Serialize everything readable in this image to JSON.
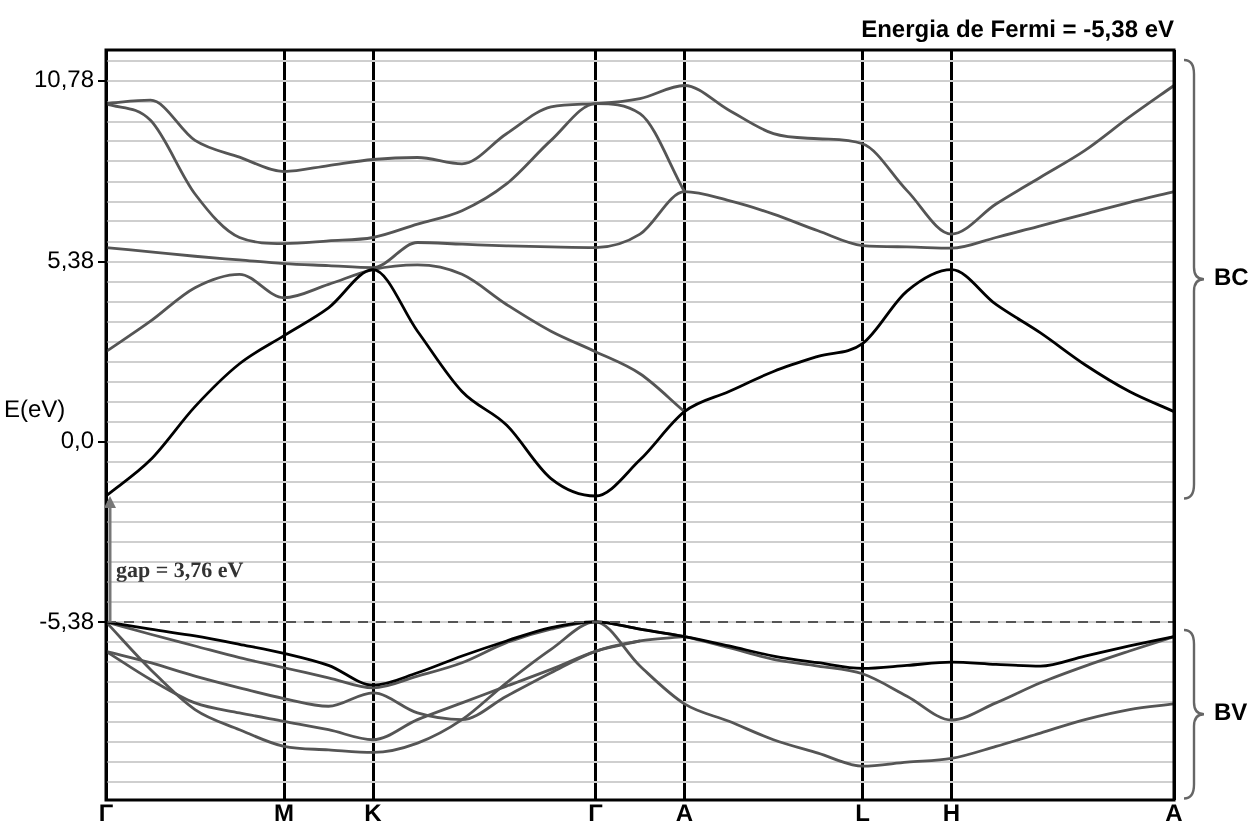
{
  "chart_data": {
    "type": "line",
    "title": "Energia de Fermi = -5,38 eV",
    "ylabel": "E(eV)",
    "categories": [
      "Γ",
      null,
      null,
      null,
      "M",
      null,
      "K",
      null,
      null,
      null,
      null,
      "Γ",
      null,
      "A",
      null,
      null,
      null,
      "L",
      null,
      "H",
      null,
      null,
      null,
      null,
      "A"
    ],
    "ylim": [
      -10.7,
      11.7
    ],
    "yticks": [
      {
        "value": -10.16,
        "label": null
      },
      {
        "value": -9.56,
        "label": null
      },
      {
        "value": -8.97,
        "label": null
      },
      {
        "value": -8.37,
        "label": null
      },
      {
        "value": -7.77,
        "label": null
      },
      {
        "value": -7.17,
        "label": null
      },
      {
        "value": -6.58,
        "label": null
      },
      {
        "value": -5.98,
        "label": null
      },
      {
        "value": -5.38,
        "label": "-5,38"
      },
      {
        "value": -4.78,
        "label": null
      },
      {
        "value": -4.18,
        "label": null
      },
      {
        "value": -3.59,
        "label": null
      },
      {
        "value": -2.99,
        "label": null
      },
      {
        "value": -2.39,
        "label": null
      },
      {
        "value": -1.79,
        "label": null
      },
      {
        "value": -1.2,
        "label": null
      },
      {
        "value": -0.6,
        "label": null
      },
      {
        "value": 0,
        "label": "0,0"
      },
      {
        "value": 0.6,
        "label": null
      },
      {
        "value": 1.2,
        "label": null
      },
      {
        "value": 1.79,
        "label": null
      },
      {
        "value": 2.39,
        "label": null
      },
      {
        "value": 2.99,
        "label": null
      },
      {
        "value": 3.59,
        "label": null
      },
      {
        "value": 4.18,
        "label": null
      },
      {
        "value": 4.78,
        "label": null
      },
      {
        "value": 5.38,
        "label": "5,38"
      },
      {
        "value": 5.98,
        "label": null
      },
      {
        "value": 6.58,
        "label": null
      },
      {
        "value": 7.17,
        "label": null
      },
      {
        "value": 7.77,
        "label": null
      },
      {
        "value": 8.37,
        "label": null
      },
      {
        "value": 8.97,
        "label": null
      },
      {
        "value": 9.56,
        "label": null
      },
      {
        "value": 10.16,
        "label": null
      },
      {
        "value": 10.78,
        "label": "10,78"
      },
      {
        "value": 11.36,
        "label": null
      }
    ],
    "grid": true,
    "legend": false,
    "marker": "none",
    "line_style": "solid",
    "ref_lines": [
      {
        "axis": "y",
        "value": -5.38,
        "line_style": "dashed",
        "color": "#555555"
      }
    ],
    "annotations": [
      "gap = 3,76 eV",
      "BC",
      "BV"
    ],
    "series": [
      {
        "color": "#000000",
        "values": [
          -1.62,
          -0.54,
          1.05,
          2.33,
          3.17,
          4.0,
          5.14,
          3.3,
          1.5,
          0.5,
          -1.1,
          -1.62,
          -0.54,
          0.9,
          1.5,
          2.1,
          2.55,
          2.93,
          4.5,
          5.14,
          4.1,
          3.25,
          2.3,
          1.5,
          0.9
        ]
      },
      {
        "color": "#555555",
        "values": [
          2.69,
          3.6,
          4.6,
          5.0,
          4.3,
          4.7,
          5.14,
          5.28,
          5.0,
          4.1,
          3.3,
          2.69,
          2.03,
          0.9,
          null,
          null,
          null,
          null,
          null,
          null,
          null,
          null,
          null,
          null,
          null
        ]
      },
      {
        "color": "#555555",
        "values": [
          5.8,
          5.67,
          5.54,
          5.43,
          5.32,
          5.26,
          5.2,
          5.95,
          5.9,
          5.85,
          5.82,
          5.8,
          6.2,
          7.47,
          7.2,
          6.8,
          6.3,
          5.86,
          5.82,
          5.78,
          6.1,
          6.45,
          6.8,
          7.15,
          7.47
        ]
      },
      {
        "color": "#555555",
        "values": [
          10.1,
          9.6,
          7.4,
          6.1,
          5.92,
          6.0,
          6.1,
          6.5,
          6.9,
          7.7,
          9.0,
          10.1,
          9.8,
          7.47,
          null,
          null,
          null,
          null,
          null,
          null,
          null,
          null,
          null,
          null,
          null
        ]
      },
      {
        "color": "#555555",
        "values": [
          10.1,
          10.2,
          9.0,
          8.5,
          8.07,
          8.25,
          8.43,
          8.49,
          8.3,
          9.2,
          10.0,
          10.1,
          10.25,
          10.64,
          9.9,
          9.2,
          9.05,
          8.9,
          7.5,
          6.2,
          7.1,
          7.9,
          8.7,
          9.7,
          10.64
        ]
      },
      {
        "color": "#000000",
        "values": [
          -5.38,
          -5.6,
          -5.8,
          -6.05,
          -6.32,
          -6.68,
          -7.27,
          -6.9,
          -6.4,
          -5.95,
          -5.55,
          -5.38,
          -5.6,
          -5.82,
          -6.1,
          -6.4,
          -6.6,
          -6.77,
          -6.68,
          -6.58,
          -6.65,
          -6.7,
          -6.4,
          -6.1,
          -5.82
        ]
      },
      {
        "color": "#555555",
        "values": [
          -5.38,
          -5.75,
          -6.1,
          -6.45,
          -6.75,
          -7.05,
          -7.35,
          -7.0,
          -6.6,
          -6.0,
          -5.6,
          -5.38,
          -5.6,
          -5.82,
          -6.15,
          -6.5,
          -6.7,
          -6.93,
          -7.6,
          -8.31,
          -7.8,
          -7.2,
          -6.7,
          -6.25,
          -5.82
        ]
      },
      {
        "color": "#555555",
        "values": [
          -6.26,
          -6.6,
          -7.0,
          -7.35,
          -7.67,
          -7.9,
          -7.5,
          -8.1,
          -8.3,
          -7.6,
          -6.9,
          -6.26,
          -5.95,
          -5.82,
          null,
          null,
          null,
          null,
          null,
          null,
          null,
          null,
          null,
          null,
          null
        ]
      },
      {
        "color": "#555555",
        "values": [
          -6.26,
          -7.1,
          -7.8,
          -8.1,
          -8.35,
          -8.6,
          -8.9,
          -8.3,
          -7.8,
          -7.3,
          -6.8,
          -6.26,
          -5.95,
          null,
          null,
          null,
          null,
          null,
          null,
          null,
          null,
          null,
          null,
          null,
          null
        ]
      },
      {
        "color": "#555555",
        "values": [
          -5.38,
          -6.8,
          -8.0,
          -8.6,
          -9.1,
          -9.2,
          -9.28,
          -9.0,
          -8.3,
          -7.2,
          -6.2,
          -5.38,
          -6.7,
          -7.83,
          -8.35,
          -8.9,
          -9.3,
          -9.69,
          -9.57,
          -9.46,
          -9.1,
          -8.7,
          -8.3,
          -8.0,
          -7.83
        ]
      }
    ]
  }
}
